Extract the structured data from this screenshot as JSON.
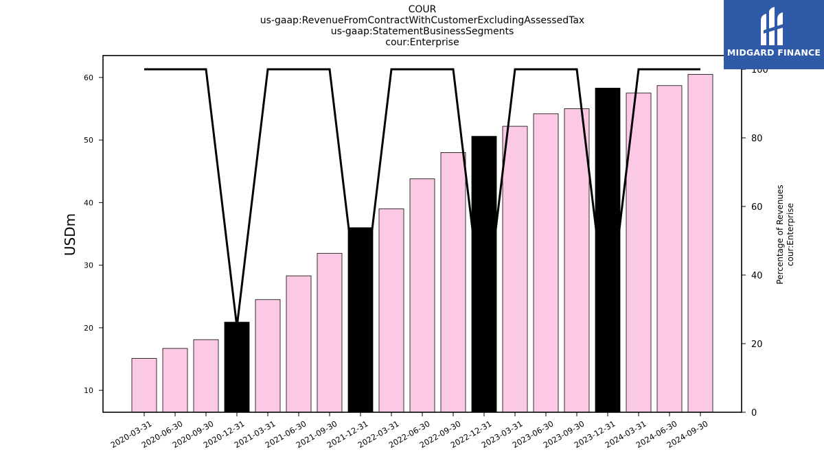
{
  "title": {
    "line1": "COUR",
    "line2": "us-gaap:RevenueFromContractWithCustomerExcludingAssessedTax",
    "line3": "us-gaap:StatementBusinessSegments",
    "line4": "cour:Enterprise"
  },
  "logo": {
    "text": "MIDGARD FINANCE",
    "background": "#2e5aa8"
  },
  "chart_data": {
    "type": "bar",
    "categories": [
      "2020-03-31",
      "2020-06-30",
      "2020-09-30",
      "2020-12-31",
      "2021-03-31",
      "2021-06-30",
      "2021-09-30",
      "2021-12-31",
      "2022-03-31",
      "2022-06-30",
      "2022-09-30",
      "2022-12-31",
      "2023-03-31",
      "2023-06-30",
      "2023-09-30",
      "2023-12-31",
      "2024-03-31",
      "2024-06-30",
      "2024-09-30"
    ],
    "series": [
      {
        "type": "bar",
        "axis": "left",
        "values": [
          15.1,
          16.7,
          18.1,
          20.9,
          24.5,
          28.3,
          31.9,
          36.0,
          39.0,
          43.8,
          48.0,
          50.6,
          52.2,
          54.2,
          55.0,
          58.3,
          57.5,
          58.7,
          60.5
        ],
        "colors": [
          "#fcc9e4",
          "#fcc9e4",
          "#fcc9e4",
          "#000000",
          "#fcc9e4",
          "#fcc9e4",
          "#fcc9e4",
          "#000000",
          "#fcc9e4",
          "#fcc9e4",
          "#fcc9e4",
          "#000000",
          "#fcc9e4",
          "#fcc9e4",
          "#fcc9e4",
          "#000000",
          "#fcc9e4",
          "#fcc9e4",
          "#fcc9e4"
        ]
      },
      {
        "type": "line",
        "axis": "right",
        "color": "#000000",
        "values": [
          100,
          100,
          100,
          25,
          100,
          100,
          100,
          25,
          100,
          100,
          100,
          25,
          100,
          100,
          100,
          25,
          100,
          100,
          100
        ]
      }
    ],
    "ylabel": "USDm",
    "ylabel_right_line1": "Percentage of Revenues",
    "ylabel_right_line2": "cour:Enterprise",
    "ylim": [
      6.5,
      63.5
    ],
    "yticks": [
      10,
      20,
      30,
      40,
      50,
      60
    ],
    "ylim_right": [
      0,
      104
    ],
    "yticks_right": [
      0,
      20,
      40,
      60,
      80,
      100
    ],
    "grid": false,
    "legend": "none"
  }
}
